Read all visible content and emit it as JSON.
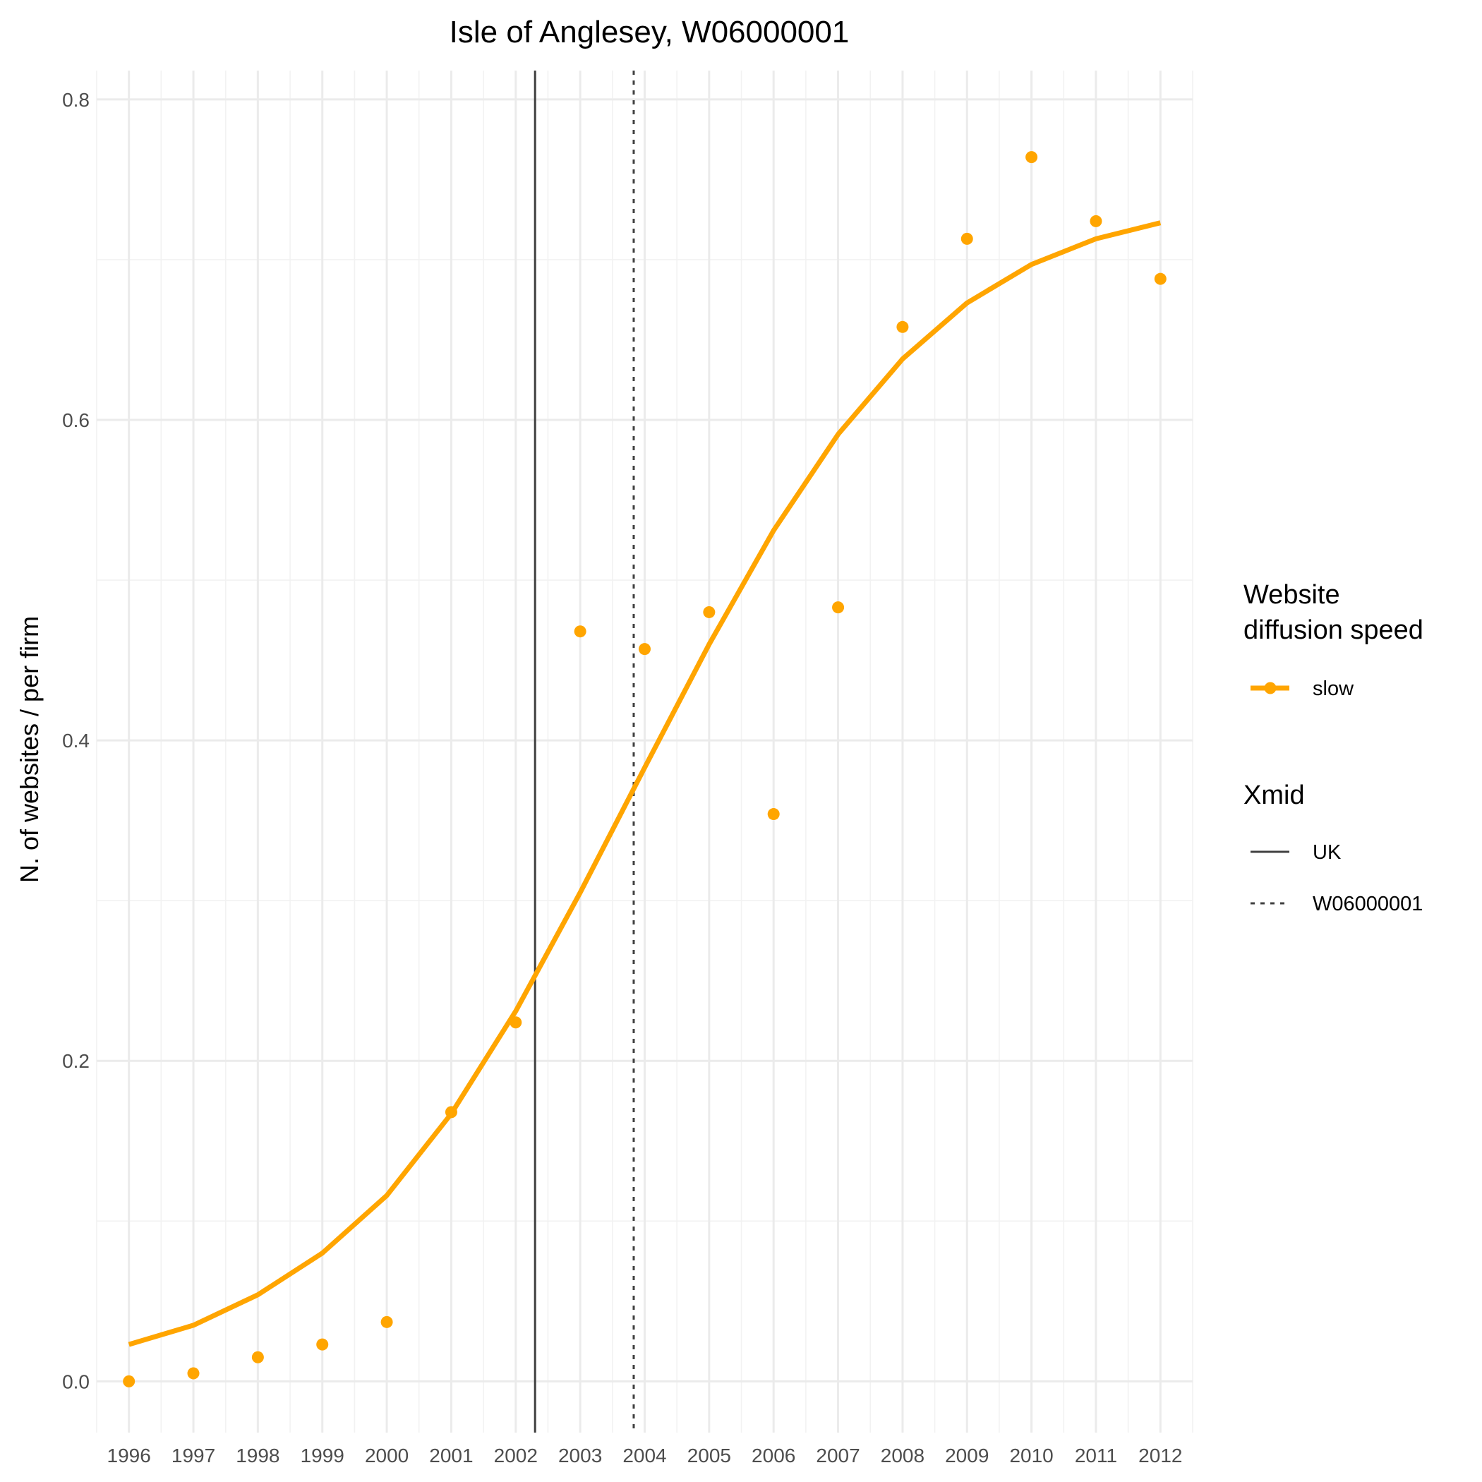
{
  "chart_data": {
    "type": "scatter",
    "title": "Isle of Anglesey, W06000001",
    "xlabel": "",
    "ylabel": "N. of websites / per firm",
    "xlim": [
      1995.5,
      2012.5
    ],
    "ylim": [
      -0.032,
      0.818
    ],
    "x_ticks": [
      1996,
      1997,
      1998,
      1999,
      2000,
      2001,
      2002,
      2003,
      2004,
      2005,
      2006,
      2007,
      2008,
      2009,
      2010,
      2011,
      2012
    ],
    "y_ticks": [
      0.0,
      0.2,
      0.4,
      0.6,
      0.8
    ],
    "y_tick_labels": [
      "0.0",
      "0.2",
      "0.4",
      "0.6",
      "0.8"
    ],
    "grid": true,
    "color": "#FFA500",
    "points": {
      "x": [
        1996,
        1997,
        1998,
        1999,
        2000,
        2001,
        2002,
        2003,
        2004,
        2005,
        2006,
        2007,
        2008,
        2009,
        2010,
        2011,
        2012
      ],
      "y": [
        0.0,
        0.005,
        0.015,
        0.023,
        0.037,
        0.168,
        0.224,
        0.468,
        0.457,
        0.48,
        0.354,
        0.483,
        0.658,
        0.713,
        0.764,
        0.724,
        0.688
      ]
    },
    "fit_line": {
      "x": [
        1996,
        1997,
        1998,
        1999,
        2000,
        2001,
        2002,
        2003,
        2004,
        2005,
        2006,
        2007,
        2008,
        2009,
        2010,
        2011,
        2012
      ],
      "y": [
        0.023,
        0.035,
        0.054,
        0.08,
        0.116,
        0.167,
        0.231,
        0.305,
        0.383,
        0.46,
        0.531,
        0.591,
        0.638,
        0.673,
        0.697,
        0.713,
        0.723
      ]
    },
    "vlines": [
      {
        "name": "UK",
        "x": 2002.3,
        "linetype": "solid",
        "color": "#404040"
      },
      {
        "name": "W06000001",
        "x": 2003.83,
        "linetype": "dotted",
        "color": "#404040"
      }
    ],
    "legend": {
      "placement": "right",
      "groups": [
        {
          "title_lines": [
            "Website",
            "diffusion speed"
          ],
          "entries": [
            {
              "label": "slow",
              "kind": "point-line"
            }
          ]
        },
        {
          "title_lines": [
            "Xmid"
          ],
          "entries": [
            {
              "label": "UK",
              "kind": "solid"
            },
            {
              "label": "W06000001",
              "kind": "dotted"
            }
          ]
        }
      ]
    }
  }
}
